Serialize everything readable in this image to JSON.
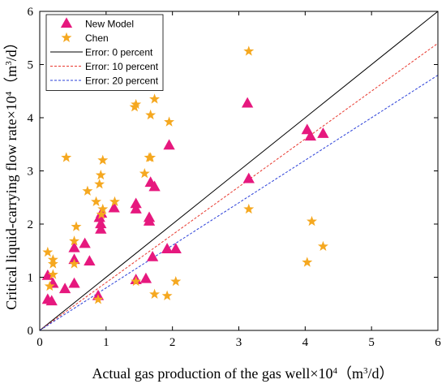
{
  "chart_data": {
    "type": "scatter",
    "title": "",
    "xlabel": {
      "main": "Actual gas production of the gas well×10",
      "exp": "4",
      "unit_open": "（m",
      "unit_exp": "3",
      "unit_close": "/d）"
    },
    "ylabel": {
      "main": "Critical liquid-carrying flow rate×10",
      "exp": "4",
      "unit_open": "（m",
      "unit_exp": "3",
      "unit_close": "/d）"
    },
    "xlim": [
      0,
      6
    ],
    "ylim": [
      0,
      6
    ],
    "xticks": [
      "0",
      "1",
      "2",
      "3",
      "4",
      "5",
      "6"
    ],
    "yticks": [
      "0",
      "1",
      "2",
      "3",
      "4",
      "5",
      "6"
    ],
    "grid": false,
    "legend_position": "top-left",
    "series": [
      {
        "name": "New Model",
        "marker": "triangle",
        "color": "#e6187e",
        "points": [
          [
            0.12,
            1.03
          ],
          [
            0.12,
            0.58
          ],
          [
            0.18,
            0.55
          ],
          [
            0.2,
            0.88
          ],
          [
            0.38,
            0.78
          ],
          [
            0.52,
            0.88
          ],
          [
            0.52,
            1.33
          ],
          [
            0.52,
            1.55
          ],
          [
            0.68,
            1.63
          ],
          [
            0.75,
            1.3
          ],
          [
            0.88,
            0.65
          ],
          [
            0.9,
            2.12
          ],
          [
            0.92,
            1.9
          ],
          [
            0.92,
            2.0
          ],
          [
            0.93,
            2.2
          ],
          [
            1.12,
            2.3
          ],
          [
            1.45,
            0.95
          ],
          [
            1.45,
            2.28
          ],
          [
            1.45,
            2.38
          ],
          [
            1.6,
            0.97
          ],
          [
            1.65,
            2.05
          ],
          [
            1.65,
            2.12
          ],
          [
            1.67,
            2.78
          ],
          [
            1.7,
            1.38
          ],
          [
            1.73,
            2.7
          ],
          [
            1.92,
            1.53
          ],
          [
            1.95,
            3.48
          ],
          [
            2.05,
            1.53
          ],
          [
            3.13,
            4.27
          ],
          [
            3.15,
            2.85
          ],
          [
            4.03,
            3.77
          ],
          [
            4.08,
            3.65
          ],
          [
            4.27,
            3.7
          ]
        ]
      },
      {
        "name": "Chen",
        "marker": "star",
        "color": "#f5a820",
        "points": [
          [
            0.12,
            1.47
          ],
          [
            0.15,
            0.83
          ],
          [
            0.2,
            1.05
          ],
          [
            0.2,
            1.25
          ],
          [
            0.2,
            1.33
          ],
          [
            0.4,
            3.25
          ],
          [
            0.52,
            1.25
          ],
          [
            0.52,
            1.68
          ],
          [
            0.55,
            1.95
          ],
          [
            0.72,
            2.62
          ],
          [
            0.85,
            2.42
          ],
          [
            0.88,
            0.58
          ],
          [
            0.9,
            2.75
          ],
          [
            0.92,
            2.92
          ],
          [
            0.93,
            2.18
          ],
          [
            0.95,
            2.28
          ],
          [
            0.95,
            3.2
          ],
          [
            1.13,
            2.42
          ],
          [
            1.43,
            4.2
          ],
          [
            1.45,
            4.25
          ],
          [
            1.45,
            0.92
          ],
          [
            1.58,
            2.95
          ],
          [
            1.65,
            3.25
          ],
          [
            1.67,
            3.25
          ],
          [
            1.67,
            4.05
          ],
          [
            1.73,
            4.35
          ],
          [
            1.73,
            0.68
          ],
          [
            1.92,
            0.65
          ],
          [
            1.95,
            3.92
          ],
          [
            2.05,
            0.92
          ],
          [
            3.15,
            5.25
          ],
          [
            3.15,
            2.28
          ],
          [
            4.03,
            1.28
          ],
          [
            4.1,
            2.05
          ],
          [
            4.27,
            1.58
          ]
        ]
      }
    ],
    "reference_lines": [
      {
        "name": "Error: 0 percent",
        "slope": 1.0,
        "color": "#000000",
        "dash": "solid"
      },
      {
        "name": "Error: 10 percent",
        "slope": 0.9,
        "color": "#e8392f",
        "dash": "dashed"
      },
      {
        "name": "Error: 20 percent",
        "slope": 0.8,
        "color": "#2a3fd8",
        "dash": "dashed"
      }
    ]
  }
}
